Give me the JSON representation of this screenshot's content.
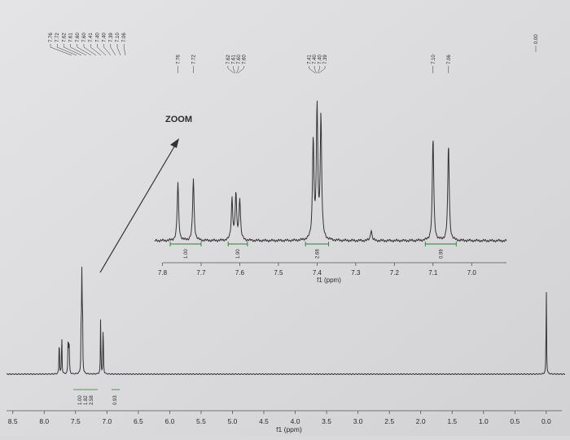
{
  "chart_data": [
    {
      "type": "line",
      "subtype": "nmr-spectrum",
      "xlabel": "f1 (ppm)",
      "x_ticks": [
        "8.5",
        "8.0",
        "7.5",
        "7.0",
        "6.5",
        "6.0",
        "5.5",
        "5.0",
        "4.5",
        "4.0",
        "3.5",
        "3.0",
        "2.5",
        "2.0",
        "1.5",
        "1.0",
        "0.5",
        "0.0"
      ],
      "xlim": [
        8.6,
        -0.3
      ],
      "x_reversed": true,
      "peaks": [
        {
          "ppm": 7.76,
          "height": 0.38
        },
        {
          "ppm": 7.72,
          "height": 0.4
        },
        {
          "ppm": 7.62,
          "height": 0.25
        },
        {
          "ppm": 7.61,
          "height": 0.28
        },
        {
          "ppm": 7.6,
          "height": 0.22
        },
        {
          "ppm": 7.41,
          "height": 0.55
        },
        {
          "ppm": 7.4,
          "height": 0.78
        },
        {
          "ppm": 7.39,
          "height": 0.7
        },
        {
          "ppm": 7.1,
          "height": 0.55
        },
        {
          "ppm": 7.06,
          "height": 0.52
        },
        {
          "ppm": 0.0,
          "height": 0.85
        }
      ],
      "peak_labels": [
        "7.76",
        "7.72",
        "7.62",
        "7.61",
        "7.60",
        "7.60",
        "7.41",
        "7.40",
        "7.40",
        "7.39",
        "7.10",
        "7.06"
      ],
      "tms_label": "0.00",
      "integrals": [
        "1.00",
        "1.82",
        "2.58",
        "0.93"
      ]
    },
    {
      "type": "line",
      "subtype": "nmr-spectrum-inset",
      "annotation": "ZOOM",
      "xlabel": "f1 (ppm)",
      "x_ticks": [
        "7.8",
        "7.7",
        "7.6",
        "7.5",
        "7.4",
        "7.3",
        "7.2",
        "7.1",
        "7.0"
      ],
      "xlim": [
        7.82,
        6.91
      ],
      "x_reversed": true,
      "peaks": [
        {
          "ppm": 7.76,
          "height": 0.42
        },
        {
          "ppm": 7.72,
          "height": 0.45
        },
        {
          "ppm": 7.62,
          "height": 0.3
        },
        {
          "ppm": 7.61,
          "height": 0.33
        },
        {
          "ppm": 7.6,
          "height": 0.3
        },
        {
          "ppm": 7.41,
          "height": 0.72
        },
        {
          "ppm": 7.4,
          "height": 0.95
        },
        {
          "ppm": 7.39,
          "height": 0.88
        },
        {
          "ppm": 7.26,
          "height": 0.08
        },
        {
          "ppm": 7.1,
          "height": 0.75
        },
        {
          "ppm": 7.06,
          "height": 0.7
        }
      ],
      "header_labels": [
        {
          "text": "7.76",
          "group": 0
        },
        {
          "text": "7.72",
          "group": 1
        },
        {
          "text": "7.62",
          "group": 2
        },
        {
          "text": "7.61",
          "group": 2
        },
        {
          "text": "7.60",
          "group": 2
        },
        {
          "text": "7.60",
          "group": 2
        },
        {
          "text": "7.41",
          "group": 3
        },
        {
          "text": "7.40",
          "group": 3
        },
        {
          "text": "7.40",
          "group": 3
        },
        {
          "text": "7.39",
          "group": 3
        },
        {
          "text": "7.10",
          "group": 4
        },
        {
          "text": "7.06",
          "group": 5
        }
      ],
      "integrals": [
        {
          "text": "1.00",
          "from": 7.78,
          "to": 7.7
        },
        {
          "text": "1.90",
          "from": 7.63,
          "to": 7.58
        },
        {
          "text": "2.68",
          "from": 7.43,
          "to": 7.37
        },
        {
          "text": "0.99",
          "from": 7.12,
          "to": 7.04
        }
      ]
    }
  ]
}
